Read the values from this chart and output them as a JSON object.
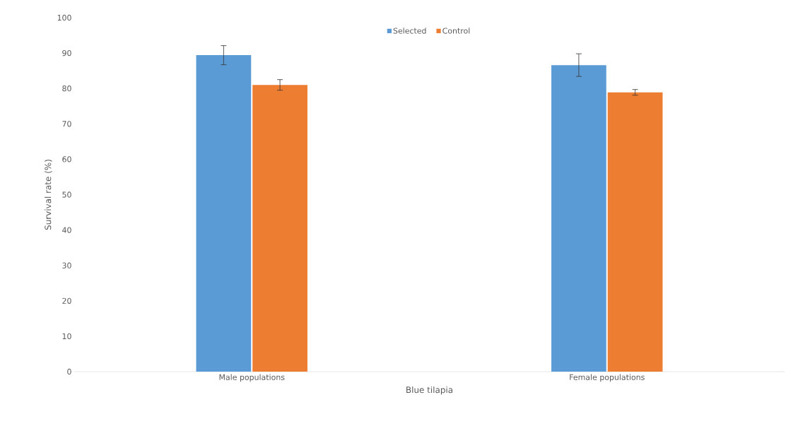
{
  "chart_data": {
    "type": "bar",
    "xlabel": "Blue tilapia",
    "ylabel": "Survival rate (%)",
    "categories": [
      "Male populations",
      "Female populations"
    ],
    "series": [
      {
        "name": "Selected",
        "color": "#5b9bd5",
        "values": [
          89.4,
          86.6
        ],
        "errors": [
          2.7,
          3.2
        ]
      },
      {
        "name": "Control",
        "color": "#ed7d31",
        "values": [
          81.0,
          78.9
        ],
        "errors": [
          1.5,
          0.8
        ]
      }
    ],
    "ylim": [
      0,
      100
    ],
    "yticks": [
      0,
      10,
      20,
      30,
      40,
      50,
      60,
      70,
      80,
      90,
      100
    ],
    "grid": false,
    "legend": "top"
  }
}
